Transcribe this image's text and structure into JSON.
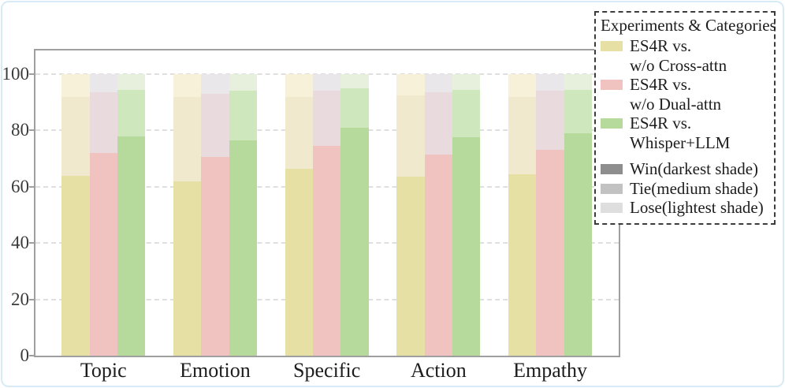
{
  "figure": {
    "outer_border_color": "#d7ebf7",
    "plot_frame_color": "#9f9f9f",
    "background": "#ffffff"
  },
  "chart_data": {
    "type": "bar",
    "subtype": "grouped-stacked",
    "title": "",
    "xlabel": "",
    "ylabel": "",
    "categories": [
      "Topic",
      "Emotion",
      "Specific",
      "Action",
      "Empathy"
    ],
    "stack_order_bottom_to_top": [
      "win",
      "tie",
      "lose"
    ],
    "series": [
      {
        "name": "ES4R vs. w/o Cross-attn",
        "colors": {
          "win": "#e6e0a5",
          "tie": "#f0e9ce",
          "lose": "#f6f1d8"
        },
        "win": [
          64,
          62,
          66.5,
          63.5,
          64.5
        ],
        "tie": [
          28,
          30,
          25.5,
          29,
          27.5
        ],
        "lose": [
          8,
          8,
          8,
          7.5,
          8
        ]
      },
      {
        "name": "ES4R vs. w/o Dual-attn",
        "colors": {
          "win": "#f0c3c0",
          "tie": "#e9dadd",
          "lose": "#e9e7ea"
        },
        "win": [
          72,
          70.5,
          74.5,
          71.5,
          73
        ],
        "tie": [
          21.5,
          22.5,
          19.5,
          22,
          21
        ],
        "lose": [
          6.5,
          7,
          6,
          6.5,
          6
        ]
      },
      {
        "name": "ES4R vs. Whisper+LLM",
        "colors": {
          "win": "#b6da9c",
          "tie": "#cfe7bc",
          "lose": "#e6f0dd"
        },
        "win": [
          78,
          76.5,
          81,
          77.5,
          79
        ],
        "tie": [
          16.5,
          17.5,
          14,
          17,
          15.5
        ],
        "lose": [
          5.5,
          6,
          5,
          5.5,
          5.5
        ]
      }
    ],
    "ylim": [
      0,
      100
    ],
    "yticks": [
      0,
      20,
      40,
      60,
      80,
      100
    ],
    "grid": "dashed-horizontal",
    "legend_position": "top-right"
  },
  "legend": {
    "title": "Experiments & Categories",
    "experiment_items": [
      {
        "swatch": "#e6e0a5",
        "line1": "ES4R vs.",
        "line2": "w/o Cross-attn"
      },
      {
        "swatch": "#f0c3c0",
        "line1": "ES4R vs.",
        "line2": "w/o Dual-attn"
      },
      {
        "swatch": "#b6da9c",
        "line1": "ES4R vs.",
        "line2": "Whisper+LLM"
      }
    ],
    "shade_items": [
      {
        "swatch": "#8e8e8e",
        "label": "Win(darkest shade)"
      },
      {
        "swatch": "#c2c2c2",
        "label": "Tie(medium shade)"
      },
      {
        "swatch": "#dedede",
        "label": "Lose(lightest shade)"
      }
    ]
  }
}
